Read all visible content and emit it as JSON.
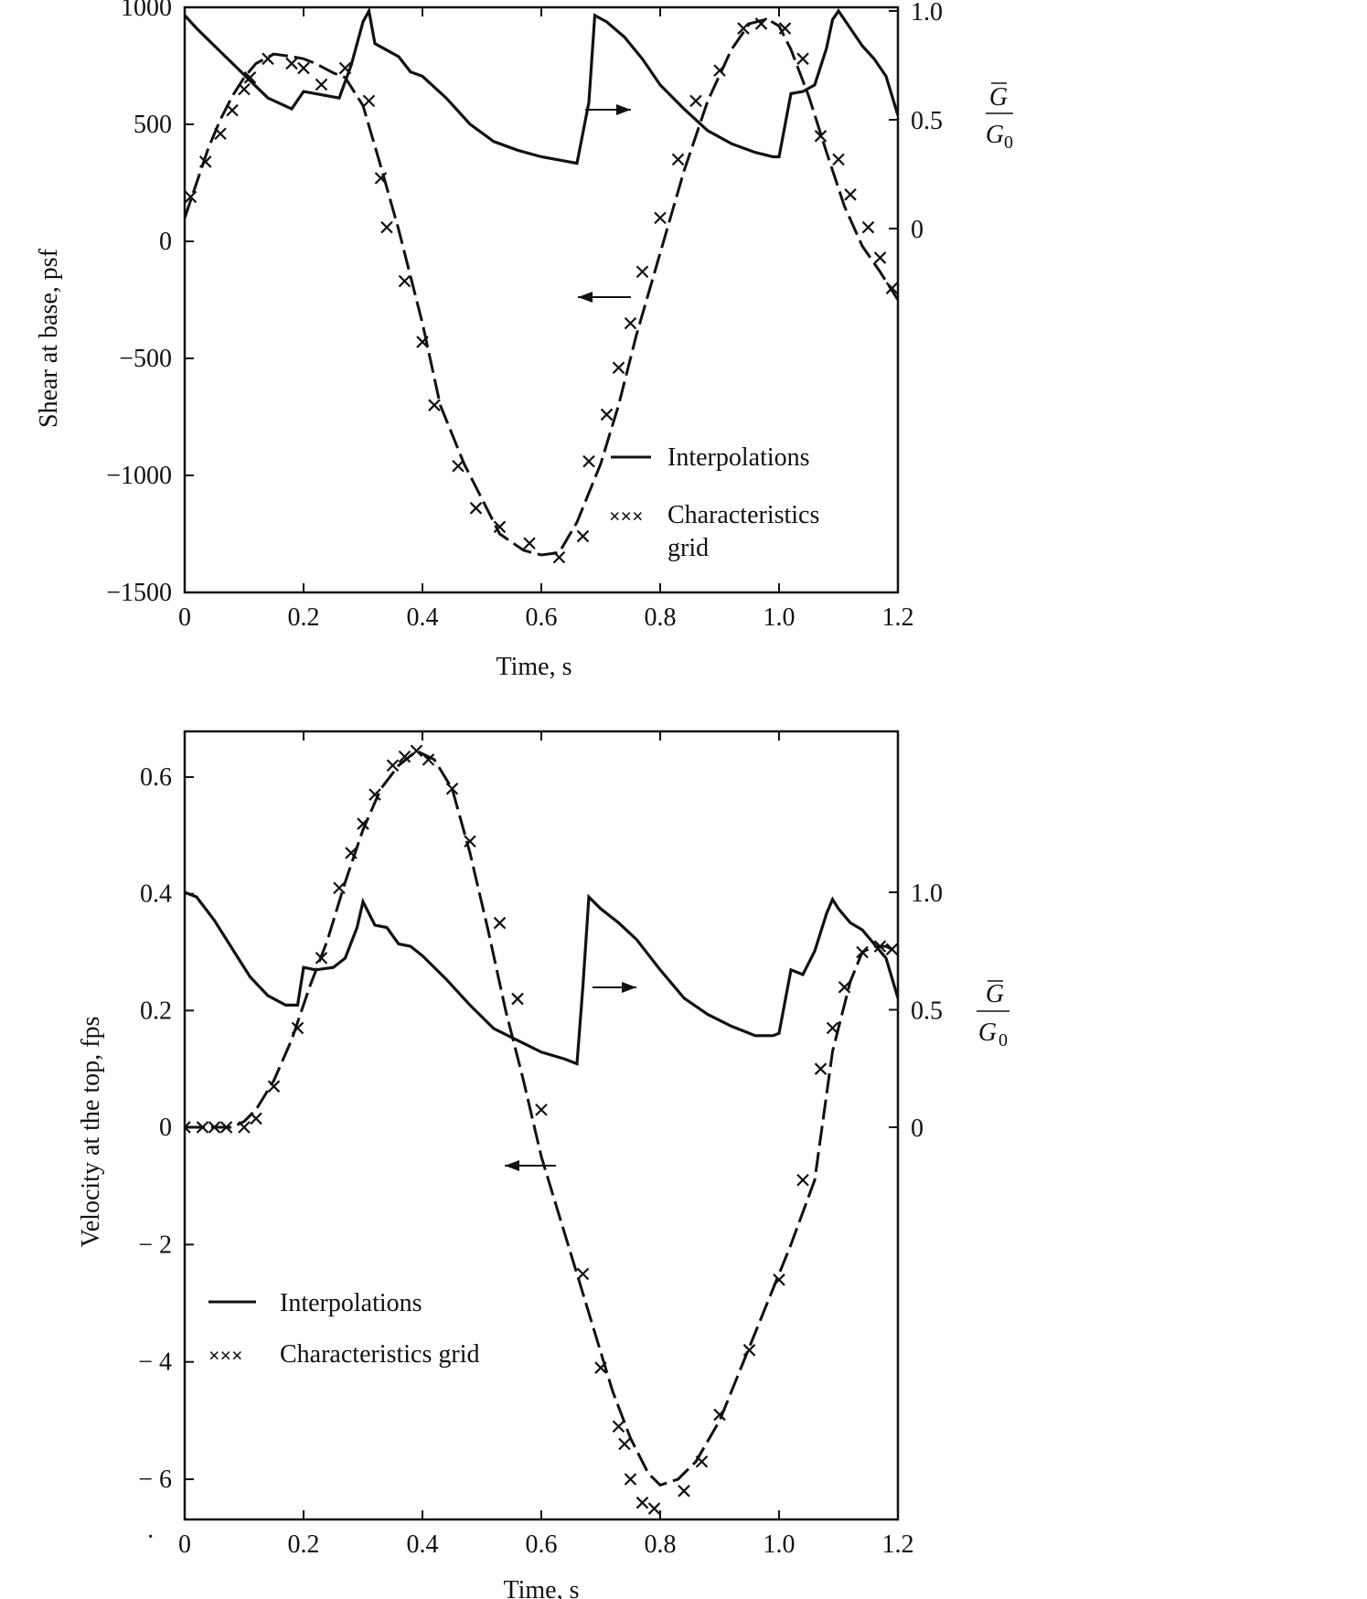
{
  "chart_data": [
    {
      "type": "line",
      "xlabel": "Time, s",
      "ylabel": "Shear at base, psf",
      "y2label_num": "G",
      "y2label_den": "G",
      "y2label_den_sub": "0",
      "xlim": [
        0,
        1.2
      ],
      "ylim": [
        -1500,
        1000
      ],
      "y2lim_note": "right axis ticks 0, 0.5, 1.0",
      "x_ticks": [
        "0",
        "0.2",
        "0.4",
        "0.6",
        "0.8",
        "1.0",
        "1.2"
      ],
      "y_ticks": [
        {
          "value": 1000,
          "label": "1000"
        },
        {
          "value": 500,
          "label": "500"
        },
        {
          "value": 0,
          "label": "0"
        },
        {
          "value": -500,
          "label": "−500"
        },
        {
          "value": -1000,
          "label": "−1000"
        },
        {
          "value": -1500,
          "label": "−1500"
        }
      ],
      "y2_ticks": [
        {
          "value": 1.0,
          "label": "1.0"
        },
        {
          "value": 0.5,
          "label": "0.5"
        },
        {
          "value": 0,
          "label": "0"
        }
      ],
      "y2_range": [
        -1.0,
        1.0
      ],
      "legend": {
        "placement": "lower-right",
        "entries": [
          {
            "marker": "line",
            "label_lines": [
              "Interpolations"
            ]
          },
          {
            "marker": "×××",
            "label_lines": [
              "Characteristics",
              "grid"
            ]
          }
        ]
      },
      "series": [
        {
          "axis": "left",
          "style": "dashed-with-crosses",
          "x": [
            0,
            0.02,
            0.04,
            0.06,
            0.08,
            0.1,
            0.12,
            0.15,
            0.18,
            0.2,
            0.22,
            0.25,
            0.27,
            0.3,
            0.33,
            0.36,
            0.4,
            0.43,
            0.47,
            0.5,
            0.53,
            0.57,
            0.6,
            0.63,
            0.66,
            0.7,
            0.73,
            0.76,
            0.8,
            0.84,
            0.88,
            0.92,
            0.95,
            0.98,
            1.0,
            1.02,
            1.05,
            1.08,
            1.11,
            1.14,
            1.17,
            1.2
          ],
          "y": [
            100,
            250,
            400,
            520,
            620,
            700,
            760,
            800,
            790,
            780,
            760,
            720,
            700,
            580,
            320,
            50,
            -350,
            -700,
            -950,
            -1100,
            -1250,
            -1320,
            -1340,
            -1330,
            -1200,
            -950,
            -700,
            -400,
            -50,
            300,
            600,
            820,
            930,
            950,
            920,
            820,
            620,
            380,
            150,
            -20,
            -130,
            -250
          ],
          "markers_x": [
            0.01,
            0.035,
            0.06,
            0.08,
            0.1,
            0.11,
            0.14,
            0.18,
            0.2,
            0.23,
            0.27,
            0.31,
            0.33,
            0.34,
            0.37,
            0.4,
            0.42,
            0.46,
            0.49,
            0.53,
            0.58,
            0.63,
            0.67,
            0.68,
            0.71,
            0.73,
            0.75,
            0.77,
            0.8,
            0.83,
            0.86,
            0.9,
            0.94,
            0.97,
            1.01,
            1.04,
            1.07,
            1.1,
            1.12,
            1.15,
            1.17,
            1.19
          ],
          "markers_y": [
            190,
            340,
            460,
            560,
            650,
            700,
            780,
            760,
            740,
            670,
            740,
            600,
            270,
            60,
            -170,
            -430,
            -700,
            -960,
            -1140,
            -1220,
            -1290,
            -1350,
            -1260,
            -940,
            -740,
            -540,
            -350,
            -130,
            100,
            350,
            600,
            730,
            910,
            930,
            910,
            780,
            450,
            350,
            200,
            60,
            -70,
            -200
          ]
        },
        {
          "axis": "right",
          "style": "solid",
          "x": [
            0,
            0.02,
            0.05,
            0.08,
            0.11,
            0.14,
            0.18,
            0.2,
            0.22,
            0.24,
            0.26,
            0.28,
            0.3,
            0.31,
            0.32,
            0.34,
            0.36,
            0.38,
            0.4,
            0.44,
            0.48,
            0.52,
            0.56,
            0.6,
            0.64,
            0.66,
            0.68,
            0.69,
            0.71,
            0.74,
            0.77,
            0.8,
            0.84,
            0.88,
            0.92,
            0.96,
            0.99,
            1.0,
            1.02,
            1.04,
            1.06,
            1.08,
            1.09,
            1.1,
            1.12,
            1.14,
            1.16,
            1.18,
            1.2
          ],
          "y": [
            0.98,
            0.92,
            0.84,
            0.76,
            0.68,
            0.6,
            0.55,
            0.63,
            0.62,
            0.61,
            0.6,
            0.75,
            0.95,
            1.0,
            0.85,
            0.82,
            0.79,
            0.72,
            0.7,
            0.6,
            0.48,
            0.4,
            0.36,
            0.33,
            0.31,
            0.3,
            0.58,
            0.98,
            0.95,
            0.88,
            0.78,
            0.66,
            0.55,
            0.45,
            0.39,
            0.35,
            0.33,
            0.33,
            0.62,
            0.63,
            0.66,
            0.83,
            0.96,
            1.0,
            0.92,
            0.84,
            0.78,
            0.7,
            0.52
          ]
        }
      ],
      "annotations": [
        {
          "type": "arrow",
          "direction": "right",
          "meaning": "curve refers to right axis"
        },
        {
          "type": "arrow",
          "direction": "left",
          "meaning": "curve refers to left axis"
        }
      ]
    },
    {
      "type": "line",
      "xlabel": "Time, s",
      "ylabel": "Velocity at the top, fps",
      "y2label_num": "G",
      "y2label_den": "G",
      "y2label_den_sub": "0",
      "xlim": [
        0,
        1.2
      ],
      "y_scale_note": "positive side in fps 0 to 0.6, negative side -2 to -6 (compressed scale)",
      "x_ticks": [
        "0",
        "0.2",
        "0.4",
        "0.6",
        "0.8",
        "1.0",
        "1.2"
      ],
      "y_ticks": [
        {
          "value": 0.6,
          "label": "0.6"
        },
        {
          "value": 0.4,
          "label": "0.4"
        },
        {
          "value": 0.2,
          "label": "0.2"
        },
        {
          "value": 0,
          "label": "0"
        },
        {
          "value": -2,
          "label": "− 2"
        },
        {
          "value": -4,
          "label": "− 4"
        },
        {
          "value": -6,
          "label": "− 6"
        }
      ],
      "y2_ticks": [
        {
          "value": 1.0,
          "label": "1.0"
        },
        {
          "value": 0.5,
          "label": "0.5"
        },
        {
          "value": 0,
          "label": "0"
        }
      ],
      "legend": {
        "placement": "lower-left",
        "entries": [
          {
            "marker": "line",
            "label_lines": [
              "Interpolations"
            ]
          },
          {
            "marker": "×××",
            "label_lines": [
              "Characteristics grid"
            ]
          }
        ]
      },
      "series": [
        {
          "axis": "left",
          "style": "dashed-with-crosses",
          "x": [
            0,
            0.04,
            0.08,
            0.1,
            0.12,
            0.15,
            0.18,
            0.21,
            0.24,
            0.27,
            0.3,
            0.33,
            0.36,
            0.39,
            0.42,
            0.45,
            0.48,
            0.51,
            0.54,
            0.57,
            0.6,
            0.63,
            0.66,
            0.69,
            0.72,
            0.75,
            0.78,
            0.8,
            0.83,
            0.86,
            0.9,
            0.94,
            0.98,
            1.02,
            1.06,
            1.09,
            1.12,
            1.14,
            1.16,
            1.18,
            1.2
          ],
          "y": [
            0,
            0,
            0,
            0.01,
            0.03,
            0.08,
            0.15,
            0.24,
            0.32,
            0.42,
            0.51,
            0.58,
            0.62,
            0.645,
            0.63,
            0.58,
            0.47,
            0.34,
            0.2,
            0.08,
            -0.5,
            -1.5,
            -2.5,
            -3.5,
            -4.5,
            -5.3,
            -5.9,
            -6.1,
            -6.0,
            -5.7,
            -5.0,
            -4.0,
            -3.0,
            -2.0,
            -0.9,
            0.13,
            0.25,
            0.3,
            0.31,
            0.31,
            0.3
          ],
          "markers_x": [
            0.0,
            0.03,
            0.05,
            0.07,
            0.1,
            0.12,
            0.15,
            0.19,
            0.23,
            0.26,
            0.28,
            0.3,
            0.32,
            0.35,
            0.37,
            0.39,
            0.41,
            0.45,
            0.48,
            0.53,
            0.56,
            0.6,
            0.67,
            0.7,
            0.73,
            0.74,
            0.75,
            0.77,
            0.79,
            0.84,
            0.87,
            0.9,
            0.95,
            1.0,
            1.04,
            1.07,
            1.09,
            1.11,
            1.14,
            1.17,
            1.19
          ],
          "markers_y": [
            0,
            0,
            0,
            0,
            0,
            0.015,
            0.07,
            0.17,
            0.29,
            0.41,
            0.47,
            0.52,
            0.57,
            0.62,
            0.635,
            0.645,
            0.63,
            0.58,
            0.49,
            0.35,
            0.22,
            0.03,
            -2.5,
            -4.1,
            -5.1,
            -5.4,
            -6.0,
            -6.4,
            -6.5,
            -6.2,
            -5.7,
            -4.9,
            -3.8,
            -2.6,
            -0.9,
            0.1,
            0.17,
            0.24,
            0.3,
            0.31,
            0.305
          ]
        },
        {
          "axis": "right",
          "style": "solid",
          "x": [
            0,
            0.02,
            0.05,
            0.08,
            0.11,
            0.14,
            0.17,
            0.19,
            0.2,
            0.22,
            0.25,
            0.27,
            0.29,
            0.3,
            0.32,
            0.34,
            0.36,
            0.38,
            0.4,
            0.44,
            0.48,
            0.52,
            0.56,
            0.6,
            0.64,
            0.66,
            0.67,
            0.68,
            0.7,
            0.73,
            0.76,
            0.8,
            0.84,
            0.88,
            0.92,
            0.96,
            0.99,
            1.0,
            1.02,
            1.04,
            1.06,
            1.08,
            1.09,
            1.1,
            1.12,
            1.14,
            1.16,
            1.18,
            1.2
          ],
          "y": [
            1.0,
            0.98,
            0.88,
            0.76,
            0.64,
            0.56,
            0.52,
            0.52,
            0.68,
            0.67,
            0.68,
            0.72,
            0.85,
            0.96,
            0.86,
            0.85,
            0.78,
            0.77,
            0.73,
            0.63,
            0.52,
            0.42,
            0.37,
            0.32,
            0.29,
            0.27,
            0.6,
            0.98,
            0.93,
            0.87,
            0.8,
            0.67,
            0.55,
            0.48,
            0.43,
            0.39,
            0.39,
            0.4,
            0.67,
            0.65,
            0.75,
            0.91,
            0.97,
            0.93,
            0.87,
            0.84,
            0.78,
            0.72,
            0.55
          ]
        }
      ],
      "annotations": [
        {
          "type": "arrow",
          "direction": "right",
          "meaning": "curve refers to right axis"
        },
        {
          "type": "arrow",
          "direction": "left",
          "meaning": "curve refers to left axis"
        }
      ],
      "footnote_mark": "·"
    }
  ]
}
